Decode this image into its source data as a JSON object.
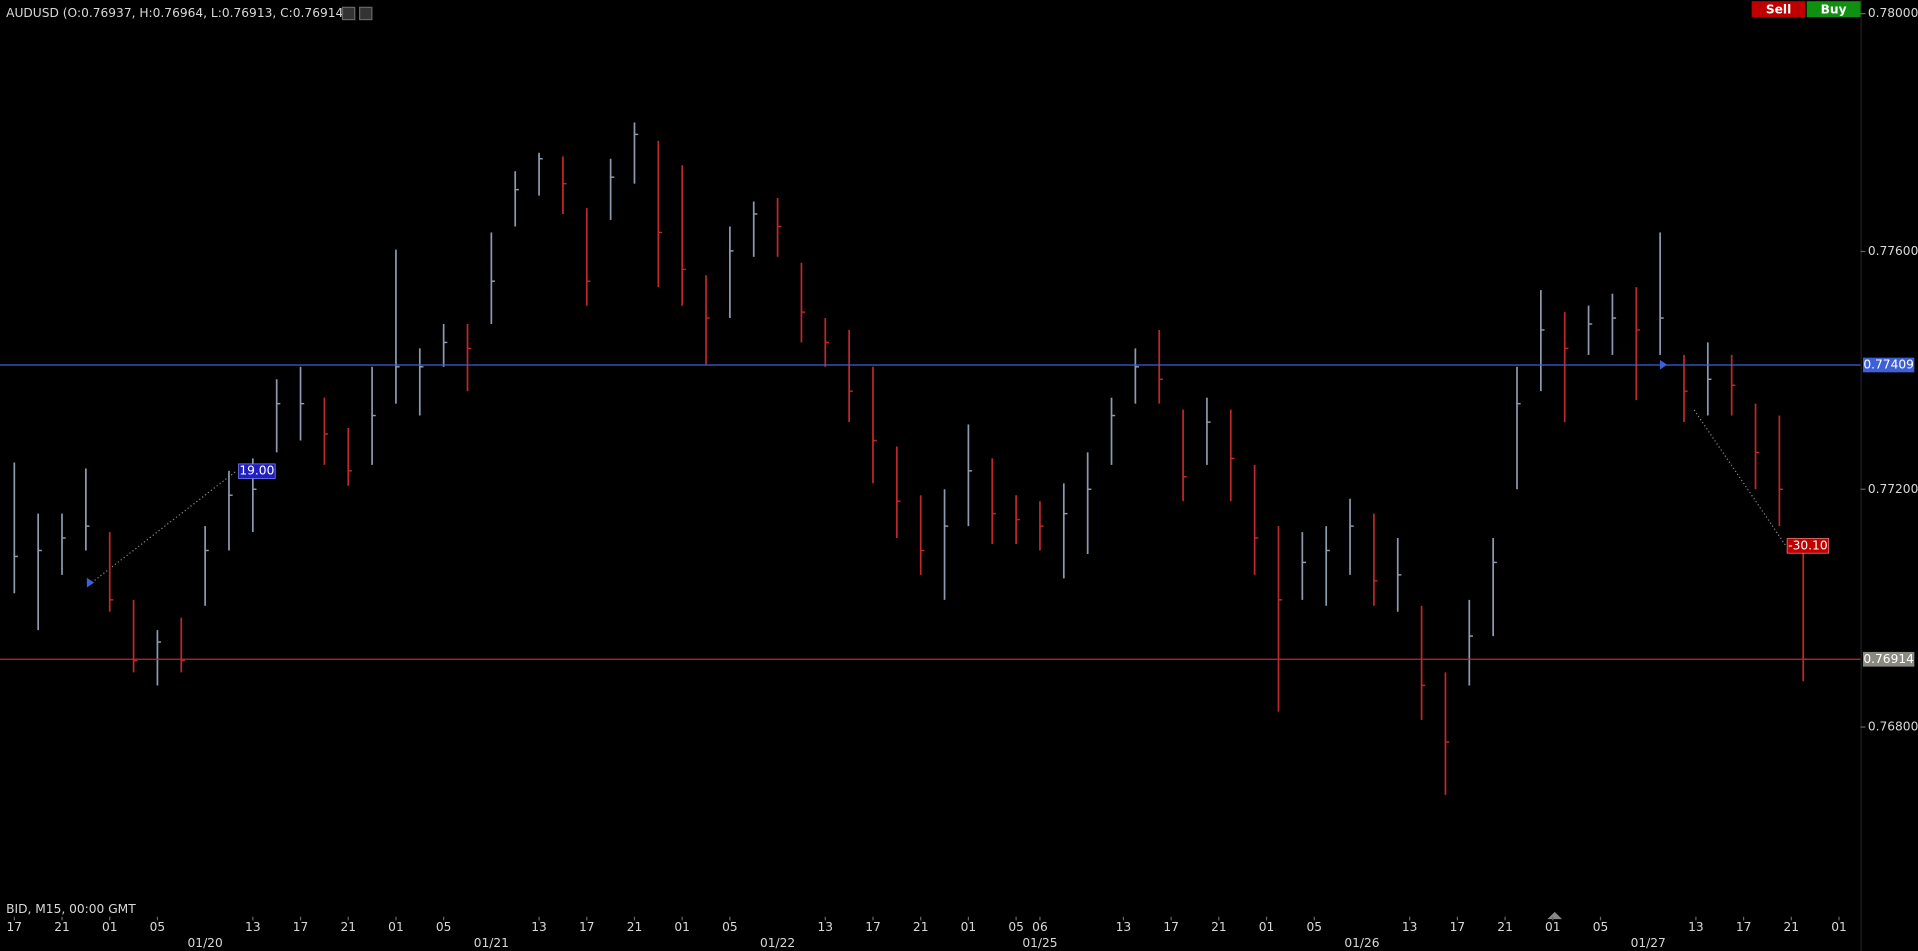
{
  "chart_data": {
    "type": "ohlc",
    "title": "AUDUSD (O:0.76937, H:0.76964, L:0.76913, C:0.76914)",
    "footer": "BID, M15, 00:00 GMT",
    "buttons": [
      "Sell",
      "Buy"
    ],
    "up_color": "#8a9bb0",
    "down_color": "#c0282b",
    "x": [
      0,
      2,
      4,
      6,
      8,
      10,
      12,
      14,
      16,
      18,
      20,
      22,
      24,
      26,
      28,
      30,
      32,
      34,
      36,
      38,
      40,
      42,
      44,
      46,
      48,
      50,
      52,
      54,
      56,
      58,
      60,
      62,
      64,
      66,
      68,
      70,
      72,
      74,
      76,
      78,
      80,
      82,
      84,
      86,
      88,
      90,
      92,
      94,
      96,
      98,
      100,
      102,
      104,
      106,
      108,
      110,
      112,
      114,
      116,
      118,
      120,
      122,
      124,
      126,
      128,
      130,
      132,
      134,
      136,
      138,
      140,
      142,
      144,
      146,
      148,
      150
    ],
    "high": [
      0.77245,
      0.77159,
      0.77159,
      0.77235,
      0.77128,
      0.77014,
      0.76963,
      0.76984,
      0.77138,
      0.77231,
      0.77252,
      0.77385,
      0.77406,
      0.77354,
      0.77303,
      0.77406,
      0.77603,
      0.77437,
      0.77478,
      0.77478,
      0.77632,
      0.77735,
      0.77766,
      0.7776,
      0.77673,
      0.77756,
      0.77817,
      0.77786,
      0.77745,
      0.7756,
      0.77642,
      0.77684,
      0.7769,
      0.77581,
      0.77488,
      0.77468,
      0.77406,
      0.77272,
      0.7719,
      0.772,
      0.77309,
      0.77252,
      0.7719,
      0.7718,
      0.7721,
      0.77262,
      0.77354,
      0.77437,
      0.77468,
      0.77334,
      0.77354,
      0.77334,
      0.77241,
      0.77138,
      0.77128,
      0.77138,
      0.77184,
      0.77159,
      0.77118,
      0.77004,
      0.76892,
      0.77014,
      0.77118,
      0.77406,
      0.77535,
      0.77498,
      0.77509,
      0.77529,
      0.7754,
      0.77632,
      0.77426,
      0.77447,
      0.77426,
      0.77344,
      0.77324,
      0.77108
    ],
    "low": [
      0.77025,
      0.76963,
      0.77056,
      0.77097,
      0.76994,
      0.76892,
      0.7687,
      0.76892,
      0.77004,
      0.77097,
      0.77128,
      0.77262,
      0.77282,
      0.77241,
      0.77206,
      0.77241,
      0.77344,
      0.77324,
      0.77406,
      0.77365,
      0.77478,
      0.77642,
      0.77694,
      0.77663,
      0.77509,
      0.77653,
      0.77714,
      0.7754,
      0.77509,
      0.7741,
      0.77488,
      0.77591,
      0.77591,
      0.77447,
      0.77406,
      0.77313,
      0.7721,
      0.77118,
      0.77056,
      0.77014,
      0.77138,
      0.77108,
      0.77108,
      0.77097,
      0.7705,
      0.77091,
      0.77241,
      0.77344,
      0.77344,
      0.7718,
      0.77241,
      0.7718,
      0.77056,
      0.76826,
      0.77014,
      0.77004,
      0.77056,
      0.77004,
      0.76994,
      0.76812,
      0.76686,
      0.7687,
      0.76953,
      0.772,
      0.77365,
      0.77313,
      0.77426,
      0.77426,
      0.7735,
      0.77426,
      0.77313,
      0.77324,
      0.77324,
      0.772,
      0.77138,
      0.76877
    ],
    "close": [
      0.77087,
      0.77097,
      0.77118,
      0.77138,
      0.77014,
      0.76912,
      0.76943,
      0.76912,
      0.77097,
      0.7719,
      0.772,
      0.77344,
      0.77344,
      0.77293,
      0.77231,
      0.77324,
      0.77406,
      0.77406,
      0.77447,
      0.77437,
      0.7755,
      0.77704,
      0.77756,
      0.77714,
      0.7755,
      0.77725,
      0.77797,
      0.77632,
      0.7757,
      0.77488,
      0.77601,
      0.77663,
      0.77642,
      0.77498,
      0.77447,
      0.77365,
      0.77282,
      0.7718,
      0.77097,
      0.77138,
      0.77231,
      0.77159,
      0.77149,
      0.77138,
      0.77159,
      0.772,
      0.77324,
      0.77406,
      0.77385,
      0.77221,
      0.77313,
      0.77252,
      0.77118,
      0.77014,
      0.77077,
      0.77097,
      0.77138,
      0.77046,
      0.77056,
      0.7687,
      0.76775,
      0.76953,
      0.77077,
      0.77344,
      0.77468,
      0.77437,
      0.77478,
      0.77488,
      0.77468,
      0.77488,
      0.77365,
      0.77385,
      0.77375,
      0.77262,
      0.772,
      0.76914
    ],
    "hlines": [
      {
        "value": 0.77409,
        "color": "#3f5fd6"
      },
      {
        "value": 0.76914,
        "color": "#c0282b"
      }
    ],
    "annotations": [
      "19.00",
      "-30.10"
    ],
    "xlim": [
      -1.2,
      154.7
    ],
    "ylim": [
      0.76483,
      0.78023
    ],
    "yticks": [
      {
        "value": 0.78,
        "label": "0.78000"
      },
      {
        "value": 0.776,
        "label": "0.77600"
      },
      {
        "value": 0.772,
        "label": "0.77200"
      },
      {
        "value": 0.768,
        "label": "0.76800"
      }
    ],
    "xticks": [
      {
        "value": 0,
        "label": "17"
      },
      {
        "value": 4,
        "label": "21"
      },
      {
        "value": 8,
        "label": "01"
      },
      {
        "value": 12,
        "label": "05"
      },
      {
        "value": 20,
        "label": "13"
      },
      {
        "value": 24,
        "label": "17"
      },
      {
        "value": 28,
        "label": "21"
      },
      {
        "value": 32,
        "label": "01"
      },
      {
        "value": 36,
        "label": "05"
      },
      {
        "value": 44,
        "label": "13"
      },
      {
        "value": 48,
        "label": "17"
      },
      {
        "value": 52,
        "label": "21"
      },
      {
        "value": 56,
        "label": "01"
      },
      {
        "value": 60,
        "label": "05"
      },
      {
        "value": 68,
        "label": "13"
      },
      {
        "value": 72,
        "label": "17"
      },
      {
        "value": 76,
        "label": "21"
      },
      {
        "value": 80,
        "label": "01"
      },
      {
        "value": 84,
        "label": "05"
      },
      {
        "value": 86,
        "label": "06"
      },
      {
        "value": 93,
        "label": "13"
      },
      {
        "value": 97,
        "label": "17"
      },
      {
        "value": 101,
        "label": "21"
      },
      {
        "value": 105,
        "label": "01"
      },
      {
        "value": 109,
        "label": "05"
      },
      {
        "value": 117,
        "label": "13"
      },
      {
        "value": 121,
        "label": "17"
      },
      {
        "value": 125,
        "label": "21"
      },
      {
        "value": 129,
        "label": "01"
      },
      {
        "value": 133,
        "label": "05"
      },
      {
        "value": 141,
        "label": "13"
      },
      {
        "value": 145,
        "label": "17"
      },
      {
        "value": 149,
        "label": "21"
      },
      {
        "value": 153,
        "label": "01"
      }
    ],
    "date_ticks": [
      {
        "value": 16,
        "label": "01/20"
      },
      {
        "value": 40,
        "label": "01/21"
      },
      {
        "value": 64,
        "label": "01/22"
      },
      {
        "value": 86,
        "label": "01/25"
      },
      {
        "value": 113,
        "label": "01/26"
      },
      {
        "value": 137,
        "label": "01/27"
      }
    ]
  }
}
